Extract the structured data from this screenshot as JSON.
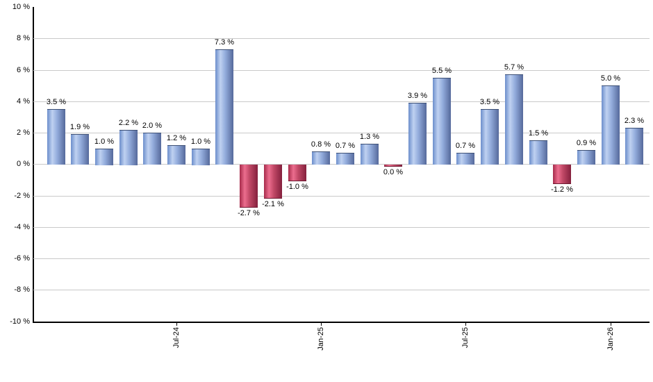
{
  "chart_data": {
    "type": "bar",
    "title": "",
    "xlabel": "",
    "ylabel": "",
    "ylim": [
      -10,
      10
    ],
    "grid": true,
    "legend": false,
    "bars": [
      {
        "value": 3.5,
        "label": "3.5 %",
        "color": "blue"
      },
      {
        "value": 1.9,
        "label": "1.9 %",
        "color": "blue"
      },
      {
        "value": 1.0,
        "label": "1.0 %",
        "color": "blue"
      },
      {
        "value": 2.2,
        "label": "2.2 %",
        "color": "blue"
      },
      {
        "value": 2.0,
        "label": "2.0 %",
        "color": "blue"
      },
      {
        "value": 1.2,
        "label": "1.2 %",
        "color": "blue"
      },
      {
        "value": 1.0,
        "label": "1.0 %",
        "color": "blue"
      },
      {
        "value": 7.3,
        "label": "7.3 %",
        "color": "blue"
      },
      {
        "value": -2.7,
        "label": "-2.7 %",
        "color": "red"
      },
      {
        "value": -2.1,
        "label": "-2.1 %",
        "color": "red"
      },
      {
        "value": -1.0,
        "label": "-1.0 %",
        "color": "red"
      },
      {
        "value": 0.8,
        "label": "0.8 %",
        "color": "blue"
      },
      {
        "value": 0.7,
        "label": "0.7 %",
        "color": "blue"
      },
      {
        "value": 1.3,
        "label": "1.3 %",
        "color": "blue"
      },
      {
        "value": 0.0,
        "label": "0.0 %",
        "color": "red"
      },
      {
        "value": 3.9,
        "label": "3.9 %",
        "color": "blue"
      },
      {
        "value": 5.5,
        "label": "5.5 %",
        "color": "blue"
      },
      {
        "value": 0.7,
        "label": "0.7 %",
        "color": "blue"
      },
      {
        "value": 3.5,
        "label": "3.5 %",
        "color": "blue"
      },
      {
        "value": 5.7,
        "label": "5.7 %",
        "color": "blue"
      },
      {
        "value": 1.5,
        "label": "1.5 %",
        "color": "blue"
      },
      {
        "value": -1.2,
        "label": "-1.2 %",
        "color": "red"
      },
      {
        "value": 0.9,
        "label": "0.9 %",
        "color": "blue"
      },
      {
        "value": 5.0,
        "label": "5.0 %",
        "color": "blue"
      },
      {
        "value": 2.3,
        "label": "2.3 %",
        "color": "blue"
      }
    ],
    "x_ticks": [
      {
        "index": 5,
        "label": "Jul-24"
      },
      {
        "index": 11,
        "label": "Jan-25"
      },
      {
        "index": 17,
        "label": "Jul-25"
      },
      {
        "index": 23,
        "label": "Jan-26"
      }
    ],
    "y_ticks": [
      {
        "value": 10,
        "label": "10 %"
      },
      {
        "value": 8,
        "label": "8 %"
      },
      {
        "value": 6,
        "label": "6 %"
      },
      {
        "value": 4,
        "label": "4 %"
      },
      {
        "value": 2,
        "label": "2 %"
      },
      {
        "value": 0,
        "label": "0 %"
      },
      {
        "value": -2,
        "label": "-2 %"
      },
      {
        "value": -4,
        "label": "-4 %"
      },
      {
        "value": -6,
        "label": "-6 %"
      },
      {
        "value": -8,
        "label": "-8 %"
      },
      {
        "value": -10,
        "label": "-10 %"
      }
    ],
    "colors": {
      "positive_bar_gradient": [
        "#6c8ecb",
        "#bfd1f1",
        "#93acdc",
        "#55699b"
      ],
      "negative_bar_gradient": [
        "#a62b4b",
        "#ec6d8e",
        "#c04866",
        "#84203d"
      ],
      "gridline": "#c9c9c9",
      "axis": "#000000",
      "label_text": "#000000",
      "background": "#ffffff"
    }
  }
}
